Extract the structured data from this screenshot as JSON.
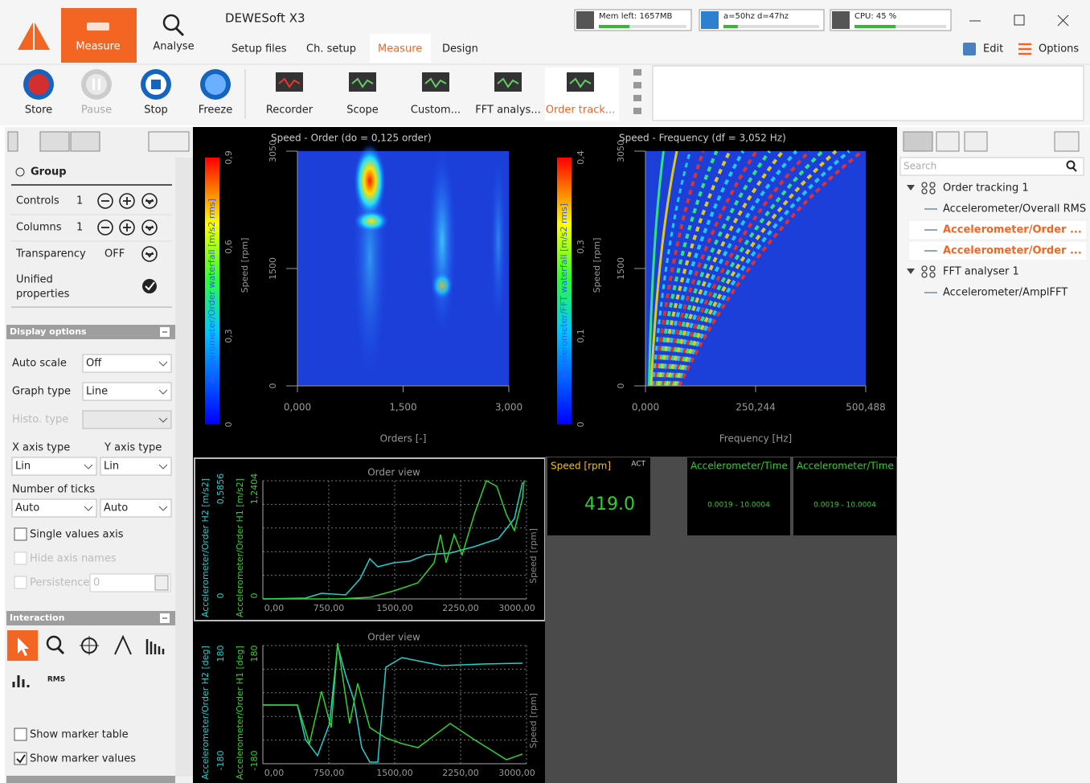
{
  "app": {
    "measure_tab": "Measure",
    "analyse_tab": "Analyse",
    "title": "DEWESoft X3",
    "menu": [
      "Setup files",
      "Ch. setup",
      "Measure",
      "Design"
    ],
    "status": [
      "Mem left: 1657MB",
      "a=50hz d=47hz",
      "CPU: 45 %"
    ],
    "edit": "Edit",
    "options": "Options"
  },
  "toolbar": {
    "buttons": [
      "Store",
      "Pause",
      "Stop",
      "Freeze"
    ],
    "instruments": [
      "Recorder",
      "Scope",
      "Custom...",
      "FFT analys...",
      "Order track..."
    ]
  },
  "left_panel": {
    "group": "Group",
    "controls": {
      "label": "Controls",
      "value": "1"
    },
    "columns": {
      "label": "Columns",
      "value": "1"
    },
    "transparency": {
      "label": "Transparency",
      "value": "OFF"
    },
    "unified": [
      "Unified",
      "properties"
    ],
    "display_options": "Display options",
    "auto_scale": {
      "label": "Auto scale",
      "value": "Off"
    },
    "graph_type": {
      "label": "Graph type",
      "value": "Line"
    },
    "histo_type": "Histo. type",
    "x_axis_type": {
      "label": "X axis type",
      "value": "Lin"
    },
    "y_axis_type": {
      "label": "Y axis type",
      "value": "Lin"
    },
    "number_of_ticks": {
      "label": "Number of ticks",
      "values": [
        "Auto",
        "Auto"
      ]
    },
    "single_values_axis": "Single values axis",
    "hide_axis_names": "Hide axis names",
    "persistence": {
      "label": "Persistence",
      "value": "0"
    },
    "interaction": "Interaction",
    "rms": "RMS",
    "show_marker_table": "Show marker table",
    "show_marker_values": "Show marker values"
  },
  "speed_order": {
    "title": "Speed - Order (do = 0,125 order)",
    "colorbar_label": "Accelerometer/Order waterfall [m/s2 rms]",
    "colorbar_ticks": [
      "0",
      "0,3",
      "0,6",
      "0,9"
    ],
    "y_label": "Speed [rpm]",
    "y_ticks": [
      "0",
      "1500",
      "3050"
    ],
    "x_ticks": [
      "0,000",
      "1,500",
      "3,000"
    ],
    "x_label": "Orders [-]"
  },
  "speed_frequency": {
    "title": "Speed - Frequency (df = 3,052 Hz)",
    "colorbar_label": "Accelerometer/FFT waterfall [m/s2 rms]",
    "colorbar_ticks": [
      "0",
      "0,1",
      "0,3",
      "0,4"
    ],
    "y_label": "Speed [rpm]",
    "y_ticks": [
      "0",
      "1500",
      "3050"
    ],
    "x_ticks": [
      "0,000",
      "250,244",
      "500,488"
    ],
    "x_label": "Frequency [Hz]"
  },
  "amplitude_view": {
    "title": "Order view",
    "y_labels": [
      "Accelerometer/Order H2 [m/s2]",
      "Accelerometer/Order H1 [m/s2]"
    ],
    "y_ticks": [
      [
        "0",
        "0,5856"
      ],
      [
        "0",
        "1,2404"
      ]
    ],
    "x_ticks": [
      "0,00",
      "750,00",
      "1500,00",
      "2250,00",
      "3000,00"
    ],
    "y2_label": "Speed [rpm]"
  },
  "phase_view": {
    "title": "Order view",
    "y_labels": [
      "Accelerometer/Order H2 [deg]",
      "Accelerometer/Order H1 [deg]"
    ],
    "y_ticks": [
      [
        "-180",
        "180"
      ],
      [
        "-180",
        "180"
      ]
    ],
    "x_ticks": [
      "0,00",
      "750,00",
      "1500,00",
      "2250,00",
      "3000,00"
    ],
    "y2_label": "Speed [rpm]"
  },
  "digital": {
    "speed": {
      "label": "Speed [rpm]",
      "mode": "ACT",
      "value": "419.0"
    },
    "meters": [
      {
        "label": "Accelerometer/Time",
        "value": "0.0019 - 10.0004"
      },
      {
        "label": "Accelerometer/Time",
        "value": "0.0019 - 10.0004"
      }
    ]
  },
  "right_panel": {
    "search": "Search",
    "tree": [
      "Order tracking 1",
      "Accelerometer/Overall RMS",
      "Accelerometer/Order ...",
      "Accelerometer/Order ...",
      "FFT analyser 1",
      "Accelerometer/AmplFFT"
    ]
  }
}
